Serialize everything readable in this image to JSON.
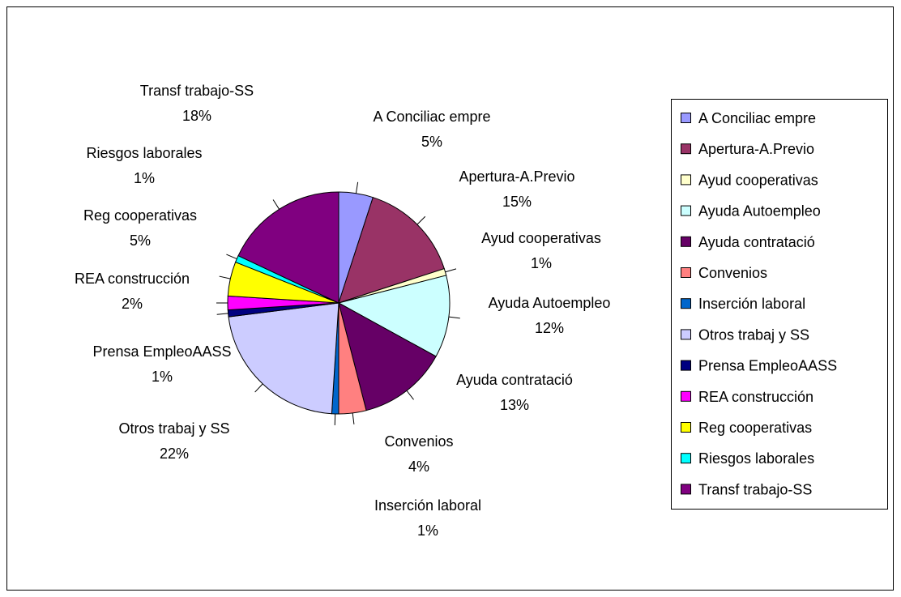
{
  "chart_data": {
    "type": "pie",
    "categories": [
      "A Conciliac empre",
      "Apertura-A.Previo",
      "Ayud cooperativas",
      "Ayuda Autoempleo",
      "Ayuda contratació",
      "Convenios",
      "Inserción laboral",
      "Otros trabaj y SS",
      "Prensa EmpleoAASS",
      "REA construcción",
      "Reg cooperativas",
      "Riesgos laborales",
      "Transf trabajo-SS"
    ],
    "values": [
      5,
      15,
      1,
      12,
      13,
      4,
      1,
      22,
      1,
      2,
      5,
      1,
      18
    ],
    "value_labels": [
      "5%",
      "15%",
      "1%",
      "12%",
      "13%",
      "4%",
      "1%",
      "22%",
      "1%",
      "2%",
      "5%",
      "1%",
      "18%"
    ],
    "colors": [
      "#9999FF",
      "#993366",
      "#FFFFCC",
      "#CCFFFF",
      "#660066",
      "#FF8080",
      "#0066CC",
      "#CCCCFF",
      "#000080",
      "#FF00FF",
      "#FFFF00",
      "#00FFFF",
      "#800080"
    ],
    "legend": "right"
  }
}
